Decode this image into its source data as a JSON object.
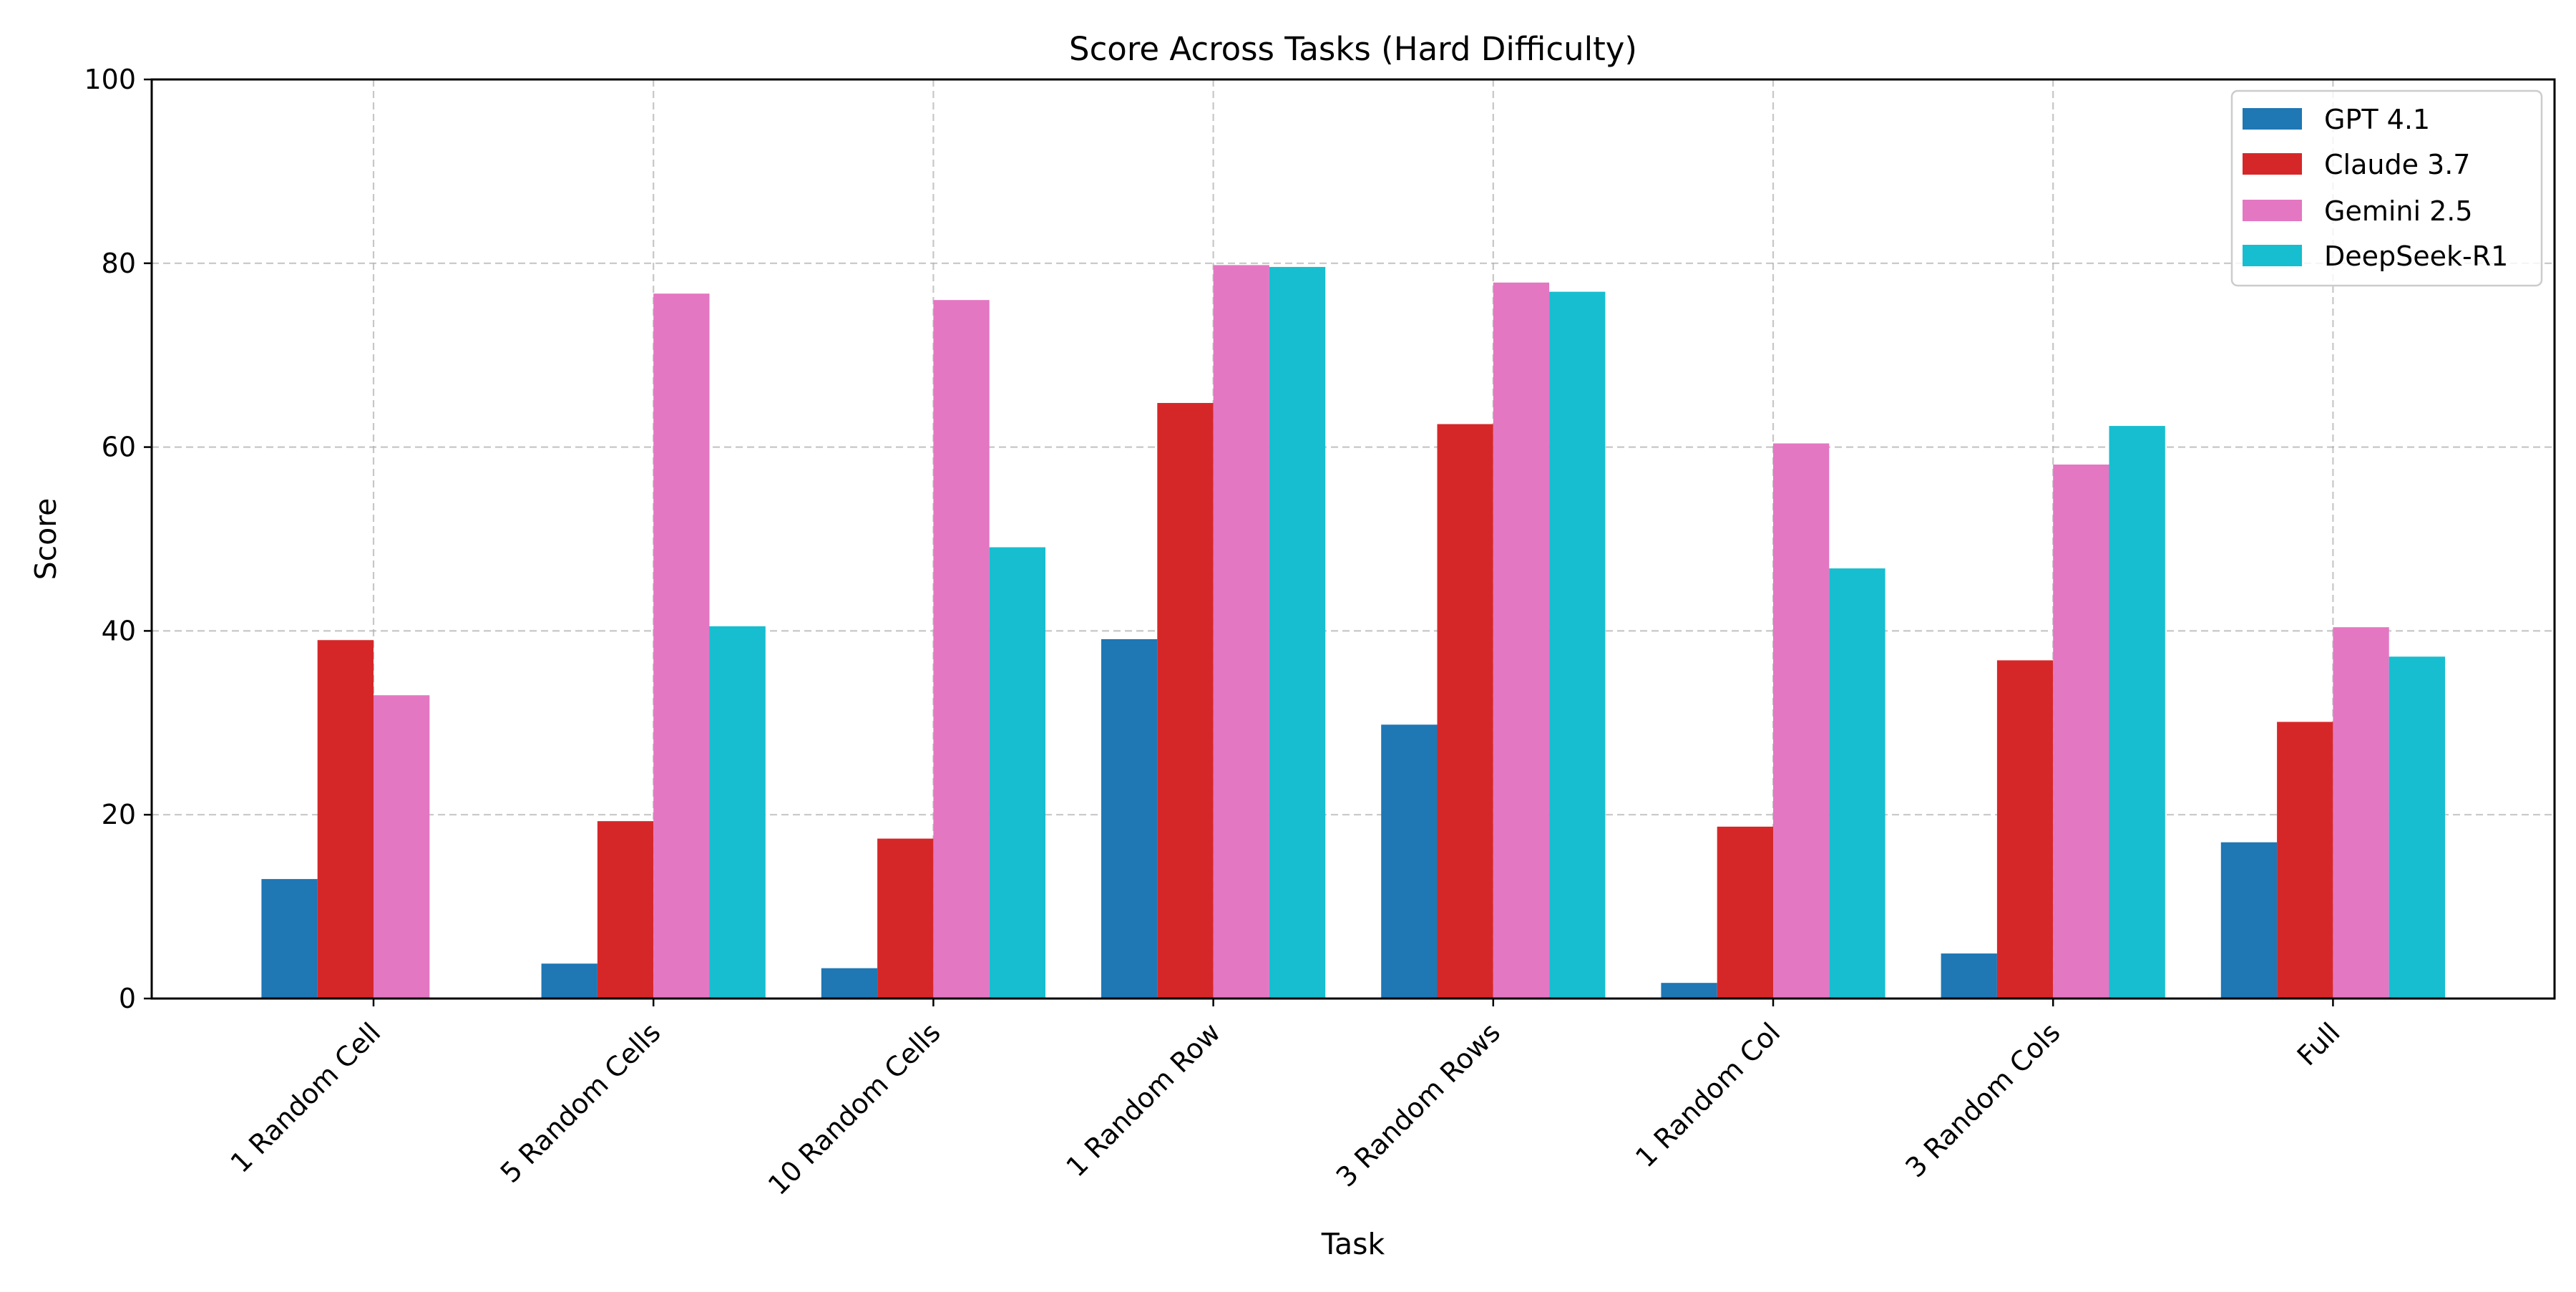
{
  "chart_data": {
    "type": "bar",
    "title": "Score Across Tasks (Hard Difficulty)",
    "xlabel": "Task",
    "ylabel": "Score",
    "ylim": [
      0,
      100
    ],
    "yticks": [
      0,
      20,
      40,
      60,
      80,
      100
    ],
    "grid": true,
    "legend_position": "top-right",
    "categories": [
      "1 Random Cell",
      "5 Random Cells",
      "10 Random Cells",
      "1 Random Row",
      "3 Random Rows",
      "1 Random Col",
      "3 Random Cols",
      "Full"
    ],
    "series": [
      {
        "name": "GPT 4.1",
        "color": "#1f77b4",
        "values": [
          13.0,
          3.8,
          3.3,
          39.1,
          29.8,
          1.7,
          4.9,
          17.0
        ]
      },
      {
        "name": "Claude 3.7",
        "color": "#d62728",
        "values": [
          39.0,
          19.3,
          17.4,
          64.8,
          62.5,
          18.7,
          36.8,
          30.1
        ]
      },
      {
        "name": "Gemini 2.5",
        "color": "#e377c2",
        "values": [
          33.0,
          76.7,
          76.0,
          79.8,
          77.9,
          60.4,
          58.1,
          40.4
        ]
      },
      {
        "name": "DeepSeek-R1",
        "color": "#17becf",
        "values": [
          0,
          40.5,
          49.1,
          79.6,
          76.9,
          46.8,
          62.3,
          37.2
        ]
      }
    ]
  }
}
